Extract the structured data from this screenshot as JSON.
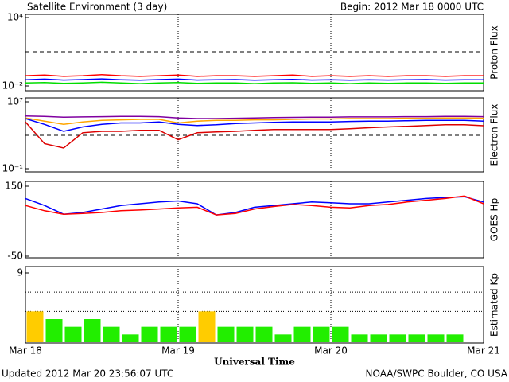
{
  "title": "Satellite Environment (3 day)",
  "begin": "Begin:  2012 Mar 18 0000 UTC",
  "updated": "Updated 2012 Mar 20 23:56:07 UTC",
  "credit": "NOAA/SWPC Boulder, CO USA",
  "x_label": "Universal Time",
  "xlim": [
    0,
    72
  ],
  "xticks": [
    {
      "value": 0,
      "label": "Mar 18"
    },
    {
      "value": 24,
      "label": "Mar 19"
    },
    {
      "value": 48,
      "label": "Mar 20"
    },
    {
      "value": 72,
      "label": "Mar 21"
    }
  ],
  "chart_data": [
    {
      "type": "line",
      "y_label": "Proton Flux",
      "log": true,
      "ylim": [
        0.01,
        10000
      ],
      "yticks": [
        {
          "value": 0.01,
          "label": "10⁻²"
        },
        {
          "value": 10000,
          "label": "10⁴"
        }
      ],
      "reference_lines": [
        10
      ],
      "x": [
        0,
        3,
        6,
        9,
        12,
        15,
        18,
        21,
        24,
        27,
        30,
        33,
        36,
        39,
        42,
        45,
        48,
        51,
        54,
        57,
        60,
        63,
        66,
        69,
        72
      ],
      "series": [
        {
          "color": "#ff0000",
          "values": [
            0.08,
            0.09,
            0.07,
            0.08,
            0.1,
            0.08,
            0.07,
            0.08,
            0.09,
            0.07,
            0.08,
            0.08,
            0.07,
            0.08,
            0.09,
            0.07,
            0.08,
            0.07,
            0.08,
            0.07,
            0.08,
            0.08,
            0.07,
            0.08,
            0.08
          ]
        },
        {
          "color": "#0000ff",
          "values": [
            0.035,
            0.04,
            0.033,
            0.036,
            0.042,
            0.035,
            0.032,
            0.036,
            0.04,
            0.033,
            0.035,
            0.036,
            0.032,
            0.035,
            0.038,
            0.033,
            0.035,
            0.032,
            0.035,
            0.033,
            0.035,
            0.036,
            0.033,
            0.035,
            0.035
          ]
        },
        {
          "color": "#00dd00",
          "values": [
            0.018,
            0.02,
            0.017,
            0.018,
            0.021,
            0.018,
            0.016,
            0.018,
            0.02,
            0.017,
            0.018,
            0.018,
            0.016,
            0.018,
            0.019,
            0.017,
            0.018,
            0.016,
            0.018,
            0.017,
            0.018,
            0.018,
            0.017,
            0.018,
            0.018
          ]
        }
      ]
    },
    {
      "type": "line",
      "y_label": "Electron Flux",
      "log": true,
      "ylim": [
        0.1,
        10000000
      ],
      "yticks": [
        {
          "value": 0.1,
          "label": "10⁻¹"
        },
        {
          "value": 10000000,
          "label": "10⁷"
        }
      ],
      "reference_lines": [
        1000
      ],
      "x": [
        0,
        3,
        6,
        9,
        12,
        15,
        18,
        21,
        24,
        27,
        30,
        33,
        36,
        39,
        42,
        45,
        48,
        51,
        54,
        57,
        60,
        63,
        66,
        69,
        72
      ],
      "series": [
        {
          "color": "#8000a0",
          "values": [
            200000,
            180000,
            150000,
            160000,
            170000,
            180000,
            180000,
            170000,
            120000,
            100000,
            100000,
            110000,
            120000,
            130000,
            140000,
            150000,
            150000,
            160000,
            160000,
            160000,
            170000,
            170000,
            180000,
            180000,
            170000
          ]
        },
        {
          "color": "#ffa500",
          "values": [
            120000,
            50000,
            20000,
            40000,
            60000,
            70000,
            80000,
            80000,
            30000,
            50000,
            60000,
            60000,
            70000,
            70000,
            80000,
            90000,
            90000,
            100000,
            100000,
            100000,
            110000,
            110000,
            120000,
            120000,
            110000
          ]
        },
        {
          "color": "#0000ff",
          "values": [
            100000,
            20000,
            3000,
            10000,
            20000,
            30000,
            30000,
            40000,
            20000,
            15000,
            18000,
            25000,
            30000,
            35000,
            40000,
            40000,
            40000,
            45000,
            50000,
            50000,
            55000,
            60000,
            60000,
            60000,
            50000
          ]
        },
        {
          "color": "#dd0000",
          "values": [
            40000,
            100,
            30,
            2000,
            3000,
            3000,
            4000,
            4000,
            300,
            2000,
            2500,
            3000,
            4000,
            5000,
            5000,
            5000,
            5000,
            6000,
            8000,
            10000,
            12000,
            15000,
            18000,
            18000,
            14000
          ]
        }
      ]
    },
    {
      "type": "line",
      "y_label": "GOES Hp",
      "log": false,
      "ylim": [
        -50,
        150
      ],
      "yticks": [
        -50,
        150
      ],
      "ytick_colors": [
        "#ff0000",
        "#000000"
      ],
      "reference_lines": [],
      "x": [
        0,
        3,
        6,
        9,
        12,
        15,
        18,
        21,
        24,
        27,
        30,
        33,
        36,
        39,
        42,
        45,
        48,
        51,
        54,
        57,
        60,
        63,
        66,
        69,
        72
      ],
      "series": [
        {
          "color": "#0000ff",
          "values": [
            115,
            95,
            70,
            75,
            85,
            95,
            100,
            105,
            108,
            100,
            68,
            75,
            90,
            95,
            100,
            105,
            103,
            100,
            100,
            105,
            110,
            115,
            118,
            120,
            105
          ]
        },
        {
          "color": "#ff0000",
          "values": [
            95,
            80,
            70,
            72,
            75,
            80,
            82,
            85,
            88,
            90,
            68,
            72,
            85,
            92,
            98,
            95,
            90,
            88,
            95,
            98,
            105,
            110,
            115,
            122,
            100
          ]
        }
      ]
    },
    {
      "type": "bar",
      "y_label": "Estimated Kp",
      "log": false,
      "ylim": [
        0,
        9
      ],
      "yticks": [
        9
      ],
      "reference_lines": [
        4,
        6.5
      ],
      "x": [
        1.5,
        4.5,
        7.5,
        10.5,
        13.5,
        16.5,
        19.5,
        22.5,
        25.5,
        28.5,
        31.5,
        34.5,
        37.5,
        40.5,
        43.5,
        46.5,
        49.5,
        52.5,
        55.5,
        58.5,
        61.5,
        64.5,
        67.5
      ],
      "values": [
        4,
        3,
        2,
        3,
        2,
        1,
        2,
        2,
        2,
        4,
        2,
        2,
        2,
        1,
        2,
        2,
        2,
        1,
        1,
        1,
        1,
        1,
        1
      ],
      "colors": [
        "#ffcc00",
        "#22ee00",
        "#22ee00",
        "#22ee00",
        "#22ee00",
        "#22ee00",
        "#22ee00",
        "#22ee00",
        "#22ee00",
        "#ffcc00",
        "#22ee00",
        "#22ee00",
        "#22ee00",
        "#22ee00",
        "#22ee00",
        "#22ee00",
        "#22ee00",
        "#22ee00",
        "#22ee00",
        "#22ee00",
        "#22ee00",
        "#22ee00",
        "#22ee00"
      ]
    }
  ]
}
